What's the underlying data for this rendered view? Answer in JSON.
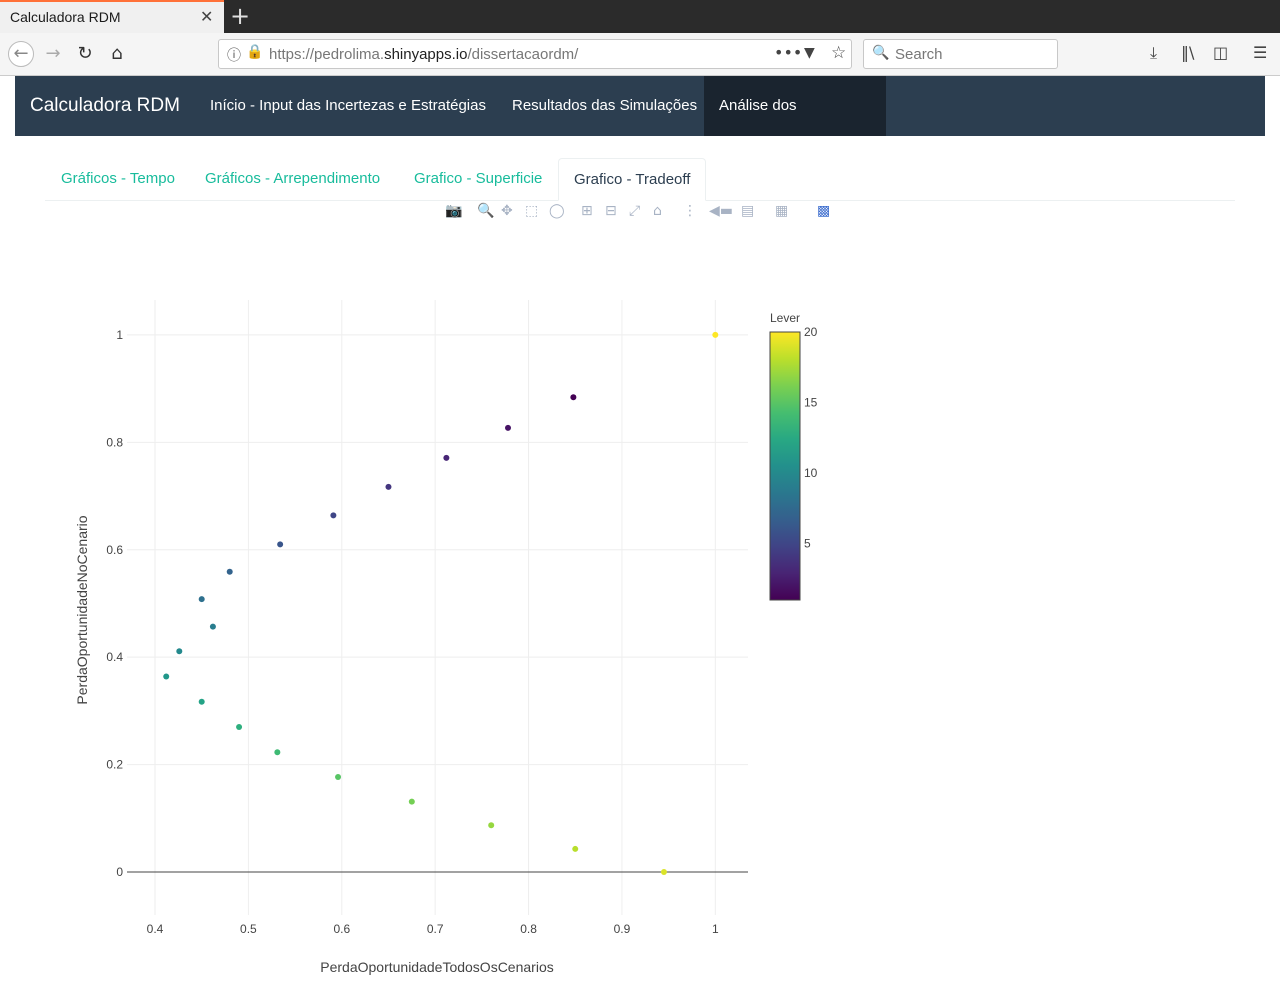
{
  "browser": {
    "tab_title": "Calculadora RDM",
    "tab_close": "✕",
    "new_tab": "+",
    "url_prefix": "https://pedrolima.",
    "url_domain": "shinyapps.io",
    "url_path": "/dissertacaordm/",
    "search_placeholder": "Search"
  },
  "app": {
    "brand": "Calculadora RDM",
    "nav": [
      {
        "label": "Início - Input das Incertezas e Estratégias"
      },
      {
        "label": "Resultados das Simulações"
      },
      {
        "label": "Análise dos Resultados"
      }
    ],
    "active_nav": 2,
    "subtabs": [
      {
        "label": "Gráficos - Tempo"
      },
      {
        "label": "Gráficos - Arrependimento"
      },
      {
        "label": "Grafico - Superficie"
      },
      {
        "label": "Grafico - Tradeoff"
      }
    ],
    "active_subtab": 3
  },
  "colors": {
    "navbar": "#2c3e50",
    "navbar_active": "#1a242f",
    "link": "#18bc9c"
  },
  "chart_data": {
    "type": "scatter",
    "xlabel": "PerdaOportunidadeTodosOsCenarios",
    "ylabel": "PerdaOportunidadeNoCenario",
    "xlim": [
      0.37,
      1.035
    ],
    "ylim": [
      -0.08,
      1.065
    ],
    "xticks": [
      0.4,
      0.5,
      0.6,
      0.7,
      0.8,
      0.9,
      1
    ],
    "yticks": [
      0,
      0.2,
      0.4,
      0.6,
      0.8,
      1
    ],
    "colorbar": {
      "title": "Lever",
      "min": 1,
      "max": 20,
      "ticks": [
        5,
        10,
        15,
        20
      ],
      "colorscale": "viridis"
    },
    "grid": true,
    "points": [
      {
        "x": 0.848,
        "y": 0.884,
        "lever": 1
      },
      {
        "x": 0.778,
        "y": 0.827,
        "lever": 2
      },
      {
        "x": 0.712,
        "y": 0.771,
        "lever": 3
      },
      {
        "x": 0.65,
        "y": 0.717,
        "lever": 4
      },
      {
        "x": 0.591,
        "y": 0.664,
        "lever": 5
      },
      {
        "x": 0.534,
        "y": 0.61,
        "lever": 6
      },
      {
        "x": 0.48,
        "y": 0.559,
        "lever": 7
      },
      {
        "x": 0.45,
        "y": 0.508,
        "lever": 8
      },
      {
        "x": 0.462,
        "y": 0.457,
        "lever": 9
      },
      {
        "x": 0.426,
        "y": 0.411,
        "lever": 10
      },
      {
        "x": 0.412,
        "y": 0.364,
        "lever": 11
      },
      {
        "x": 0.45,
        "y": 0.317,
        "lever": 12
      },
      {
        "x": 0.49,
        "y": 0.27,
        "lever": 13
      },
      {
        "x": 0.531,
        "y": 0.223,
        "lever": 14
      },
      {
        "x": 0.596,
        "y": 0.177,
        "lever": 15
      },
      {
        "x": 0.675,
        "y": 0.131,
        "lever": 16
      },
      {
        "x": 0.76,
        "y": 0.087,
        "lever": 17
      },
      {
        "x": 0.85,
        "y": 0.043,
        "lever": 18
      },
      {
        "x": 0.945,
        "y": 0.0,
        "lever": 19
      },
      {
        "x": 1.0,
        "y": 1.0,
        "lever": 20
      }
    ]
  }
}
